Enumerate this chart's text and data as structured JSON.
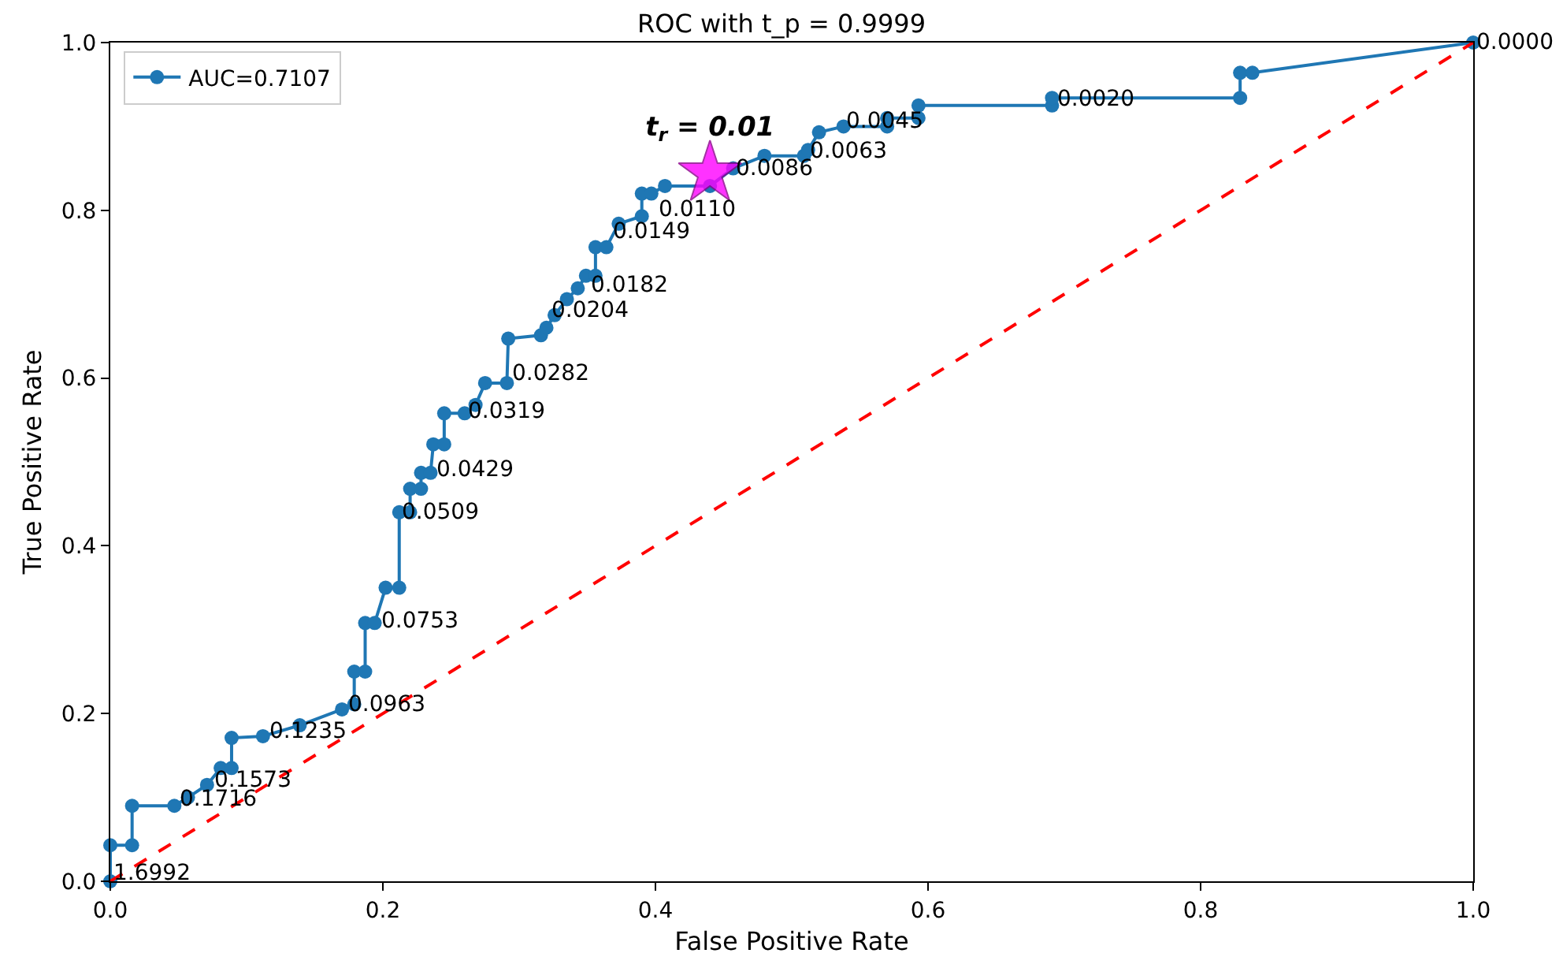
{
  "chart_data": {
    "type": "line",
    "title": "ROC with t_p = 0.9999",
    "xlabel": "False Positive Rate",
    "ylabel": "True Positive Rate",
    "xlim": [
      0,
      1
    ],
    "ylim": [
      0,
      1
    ],
    "xticks": [
      {
        "value": 0,
        "label": "0.0"
      },
      {
        "value": 0.2,
        "label": "0.2"
      },
      {
        "value": 0.4,
        "label": "0.4"
      },
      {
        "value": 0.6,
        "label": "0.6"
      },
      {
        "value": 0.8,
        "label": "0.8"
      },
      {
        "value": 1,
        "label": "1.0"
      }
    ],
    "yticks": [
      {
        "value": 0,
        "label": "0.0"
      },
      {
        "value": 0.2,
        "label": "0.2"
      },
      {
        "value": 0.4,
        "label": "0.4"
      },
      {
        "value": 0.6,
        "label": "0.6"
      },
      {
        "value": 0.8,
        "label": "0.8"
      },
      {
        "value": 1,
        "label": "1.0"
      }
    ],
    "legend": "top left",
    "series": [
      {
        "name": "AUC=0.7107",
        "color": "#1f77b4",
        "marker": "circle",
        "line_style": "solid",
        "x": [
          0,
          0,
          0.016,
          0.016,
          0.047,
          0.057,
          0.071,
          0.081,
          0.089,
          0.089,
          0.112,
          0.139,
          0.17,
          0.179,
          0.179,
          0.187,
          0.187,
          0.194,
          0.202,
          0.212,
          0.212,
          0.22,
          0.22,
          0.228,
          0.228,
          0.235,
          0.237,
          0.245,
          0.245,
          0.26,
          0.268,
          0.275,
          0.291,
          0.292,
          0.316,
          0.32,
          0.326,
          0.335,
          0.343,
          0.349,
          0.356,
          0.356,
          0.364,
          0.373,
          0.39,
          0.39,
          0.397,
          0.407,
          0.44,
          0.457,
          0.48,
          0.509,
          0.512,
          0.52,
          0.538,
          0.57,
          0.57,
          0.593,
          0.593,
          0.691,
          0.691,
          0.829,
          0.829,
          0.838,
          1
        ],
        "values": [
          0,
          0.043,
          0.043,
          0.09,
          0.09,
          0.1,
          0.115,
          0.135,
          0.135,
          0.171,
          0.173,
          0.186,
          0.205,
          0.211,
          0.25,
          0.25,
          0.308,
          0.308,
          0.35,
          0.35,
          0.44,
          0.44,
          0.468,
          0.468,
          0.487,
          0.487,
          0.521,
          0.521,
          0.558,
          0.558,
          0.568,
          0.594,
          0.594,
          0.647,
          0.651,
          0.66,
          0.675,
          0.694,
          0.707,
          0.722,
          0.722,
          0.756,
          0.756,
          0.784,
          0.793,
          0.82,
          0.82,
          0.829,
          0.829,
          0.85,
          0.865,
          0.865,
          0.872,
          0.893,
          0.9,
          0.9,
          0.91,
          0.91,
          0.925,
          0.925,
          0.934,
          0.934,
          0.964,
          0.964,
          1
        ]
      },
      {
        "color": "#ff0000",
        "marker": "none",
        "line_style": "dashed",
        "x": [
          0,
          1
        ],
        "values": [
          0,
          1
        ]
      },
      {
        "name": "t$_{r}$ = 0.01",
        "type": "scatter",
        "color": "#ff00ff",
        "marker": "star",
        "x": [
          0.44
        ],
        "values": [
          0.844
        ]
      }
    ],
    "annotations": [
      {
        "text": "1.6992",
        "x": 0,
        "y": 0.01
      },
      {
        "text": "0.1716",
        "x": 0.049,
        "y": 0.098
      },
      {
        "text": "0.1573",
        "x": 0.074,
        "y": 0.12
      },
      {
        "text": "0.1235",
        "x": 0.115,
        "y": 0.178
      },
      {
        "text": "0.0963",
        "x": 0.172,
        "y": 0.21
      },
      {
        "text": "0.0753",
        "x": 0.196,
        "y": 0.31
      },
      {
        "text": "0.0509",
        "x": 0.212,
        "y": 0.44
      },
      {
        "text": "0.0429",
        "x": 0.237,
        "y": 0.49
      },
      {
        "text": "0.0319",
        "x": 0.26,
        "y": 0.56
      },
      {
        "text": "0.0282",
        "x": 0.293,
        "y": 0.605
      },
      {
        "text": "0.0204",
        "x": 0.321,
        "y": 0.68
      },
      {
        "text": "0.0182",
        "x": 0.35,
        "y": 0.71
      },
      {
        "text": "0.0149",
        "x": 0.367,
        "y": 0.775
      },
      {
        "text": "0.0110",
        "x": 0.4,
        "y": 0.8
      },
      {
        "text": "0.0086",
        "x": 0.457,
        "y": 0.85
      },
      {
        "text": "0.0063",
        "x": 0.511,
        "y": 0.87
      },
      {
        "text": "0.0045",
        "x": 0.537,
        "y": 0.906
      },
      {
        "text": "0.0020",
        "x": 0.692,
        "y": 0.932
      },
      {
        "text": "0.0000",
        "x": 1,
        "y": 1
      }
    ]
  }
}
